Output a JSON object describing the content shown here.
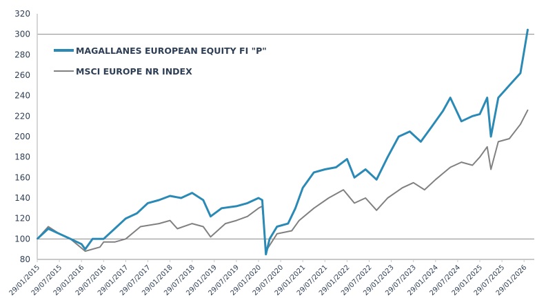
{
  "chart_data": {
    "type": "line",
    "title": "",
    "xlabel": "",
    "ylabel": "",
    "ylim": [
      80,
      320
    ],
    "yticks": [
      80,
      100,
      120,
      140,
      160,
      180,
      200,
      220,
      240,
      260,
      280,
      300,
      320
    ],
    "gridlines_y": [
      100,
      300
    ],
    "xticks": [
      "29/01/2015",
      "29/07/2015",
      "29/01/2016",
      "29/07/2016",
      "29/01/2017",
      "29/07/2017",
      "29/01/2018",
      "29/07/2018",
      "29/01/2019",
      "29/07/2019",
      "29/01/2020",
      "29/07/2020",
      "29/01/2021",
      "29/07/2021",
      "29/01/2022",
      "29/07/2022",
      "29/01/2023",
      "29/07/2023",
      "29/01/2024",
      "29/07/2024",
      "29/01/2025",
      "29/07/2025",
      "29/01/2026"
    ],
    "legend_position": "top-left",
    "series": [
      {
        "name": "MAGALLANES EUROPEAN EQUITY FI \"P\"",
        "color": "#2a8ab5",
        "x": [
          "2015-01",
          "2015-04",
          "2015-07",
          "2015-10",
          "2016-01",
          "2016-02",
          "2016-04",
          "2016-07",
          "2016-10",
          "2017-01",
          "2017-04",
          "2017-07",
          "2017-10",
          "2018-01",
          "2018-04",
          "2018-07",
          "2018-10",
          "2018-12",
          "2019-03",
          "2019-07",
          "2019-10",
          "2020-01",
          "2020-02",
          "2020-03",
          "2020-04",
          "2020-06",
          "2020-09",
          "2020-11",
          "2021-01",
          "2021-04",
          "2021-07",
          "2021-10",
          "2022-01",
          "2022-03",
          "2022-06",
          "2022-09",
          "2022-12",
          "2023-03",
          "2023-06",
          "2023-09",
          "2023-12",
          "2024-03",
          "2024-05",
          "2024-08",
          "2024-11",
          "2025-01",
          "2025-03",
          "2025-04",
          "2025-06",
          "2025-09",
          "2025-12",
          "2026-02"
        ],
        "values": [
          100,
          110,
          105,
          100,
          95,
          90,
          100,
          100,
          110,
          120,
          125,
          135,
          138,
          142,
          140,
          145,
          138,
          122,
          130,
          132,
          135,
          140,
          138,
          85,
          100,
          112,
          115,
          130,
          150,
          165,
          168,
          170,
          178,
          160,
          168,
          158,
          180,
          200,
          205,
          195,
          210,
          225,
          238,
          215,
          220,
          222,
          238,
          200,
          238,
          250,
          262,
          305
        ]
      },
      {
        "name": "MSCI EUROPE NR INDEX",
        "color": "#808080",
        "x": [
          "2015-01",
          "2015-04",
          "2015-07",
          "2015-10",
          "2016-02",
          "2016-06",
          "2016-07",
          "2016-10",
          "2017-01",
          "2017-05",
          "2017-10",
          "2018-01",
          "2018-03",
          "2018-07",
          "2018-10",
          "2018-12",
          "2019-04",
          "2019-07",
          "2019-10",
          "2020-01",
          "2020-02",
          "2020-03",
          "2020-06",
          "2020-10",
          "2020-12",
          "2021-04",
          "2021-08",
          "2021-12",
          "2022-03",
          "2022-06",
          "2022-09",
          "2022-12",
          "2023-04",
          "2023-07",
          "2023-10",
          "2024-01",
          "2024-05",
          "2024-08",
          "2024-11",
          "2025-01",
          "2025-03",
          "2025-04",
          "2025-06",
          "2025-09",
          "2025-12",
          "2026-02"
        ],
        "values": [
          100,
          112,
          105,
          100,
          88,
          92,
          97,
          97,
          100,
          112,
          115,
          118,
          110,
          115,
          112,
          102,
          115,
          118,
          122,
          130,
          132,
          88,
          105,
          108,
          118,
          130,
          140,
          148,
          135,
          140,
          128,
          140,
          150,
          155,
          148,
          158,
          170,
          175,
          172,
          180,
          190,
          168,
          195,
          198,
          212,
          226
        ]
      }
    ]
  }
}
